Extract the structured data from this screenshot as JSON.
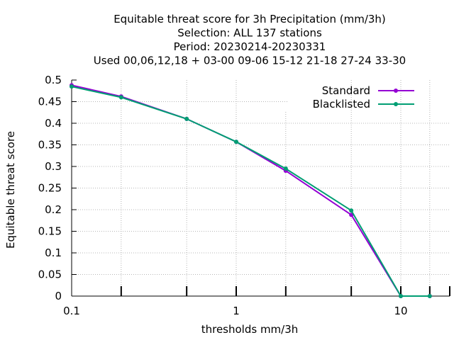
{
  "chart_data": {
    "type": "line",
    "title_lines": [
      "Equitable threat score  for 3h Precipitation (mm/3h)",
      "Selection: ALL    137 stations",
      "Period: 20230214-20230331",
      "Used  00,06,12,18 + 03-00 09-06 15-12 21-18 27-24 33-30"
    ],
    "xlabel": "thresholds mm/3h",
    "ylabel": "Equitable threat score",
    "x_scale": "log",
    "xlim": [
      0.1,
      20
    ],
    "ylim": [
      0,
      0.5
    ],
    "x_ticks": [
      0.1,
      1,
      10
    ],
    "x_tick_labels": [
      "0.1",
      "1",
      "10"
    ],
    "y_ticks": [
      0,
      0.05,
      0.1,
      0.15,
      0.2,
      0.25,
      0.3,
      0.35,
      0.4,
      0.45,
      0.5
    ],
    "y_tick_labels": [
      "0",
      "0.05",
      "0.1",
      "0.15",
      "0.2",
      "0.25",
      "0.3",
      "0.35",
      "0.4",
      "0.45",
      "0.5"
    ],
    "grid": true,
    "legend_position": "top-right",
    "x": [
      0.1,
      0.2,
      0.5,
      1,
      2,
      5,
      10,
      15
    ],
    "series": [
      {
        "name": "Standard",
        "color": "#9400d3",
        "values": [
          0.488,
          0.462,
          0.41,
          0.357,
          0.29,
          0.188,
          0.0,
          0.0
        ]
      },
      {
        "name": "Blacklisted",
        "color": "#009e73",
        "values": [
          0.485,
          0.46,
          0.41,
          0.357,
          0.295,
          0.198,
          0.0,
          0.0
        ]
      }
    ]
  }
}
